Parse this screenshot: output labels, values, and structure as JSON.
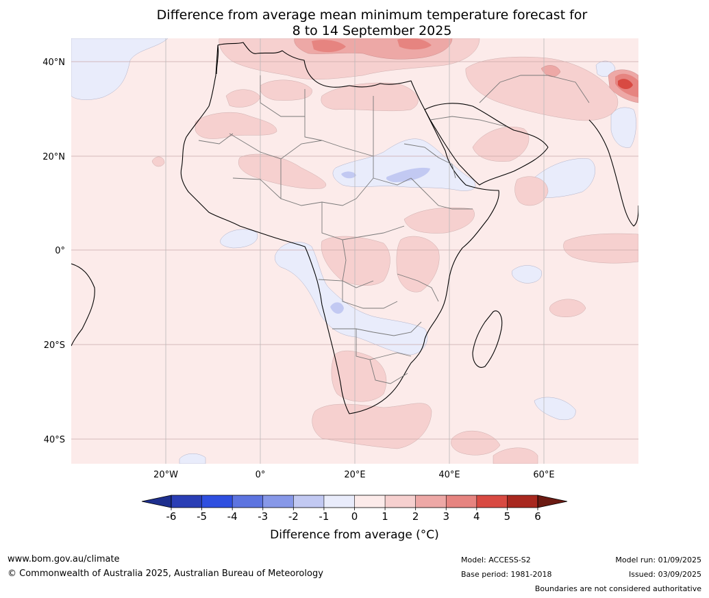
{
  "title_line1": "Difference from average mean minimum temperature forecast for",
  "title_line2": "8 to 14 September 2025",
  "lat_labels": [
    "40°N",
    "20°N",
    "0°",
    "20°S",
    "40°S"
  ],
  "lon_labels": [
    "20°W",
    "0°",
    "20°E",
    "40°E",
    "60°E"
  ],
  "colorbar": {
    "ticks": [
      "-6",
      "-5",
      "-4",
      "-3",
      "-2",
      "-1",
      "0",
      "1",
      "2",
      "3",
      "4",
      "5",
      "6"
    ],
    "colors": [
      "#1e2f8e",
      "#2a3eb5",
      "#2f4fe0",
      "#5d74e0",
      "#8798e8",
      "#c2c9f2",
      "#e9ecfb",
      "#fcebea",
      "#f6d0cf",
      "#eda8a6",
      "#e68480",
      "#d84a42",
      "#a8281f",
      "#6b1a12"
    ],
    "title": "Difference from average (°C)"
  },
  "footer": {
    "website": "www.bom.gov.au/climate",
    "copyright": "© Commonwealth of Australia 2025, Australian Bureau of Meteorology",
    "model": "Model: ACCESS-S2",
    "base_period": "Base period: 1981-2018",
    "model_run": "Model run: 01/09/2025",
    "issued": "Issued: 03/09/2025",
    "disclaimer": "Boundaries are not considered authoritative"
  }
}
